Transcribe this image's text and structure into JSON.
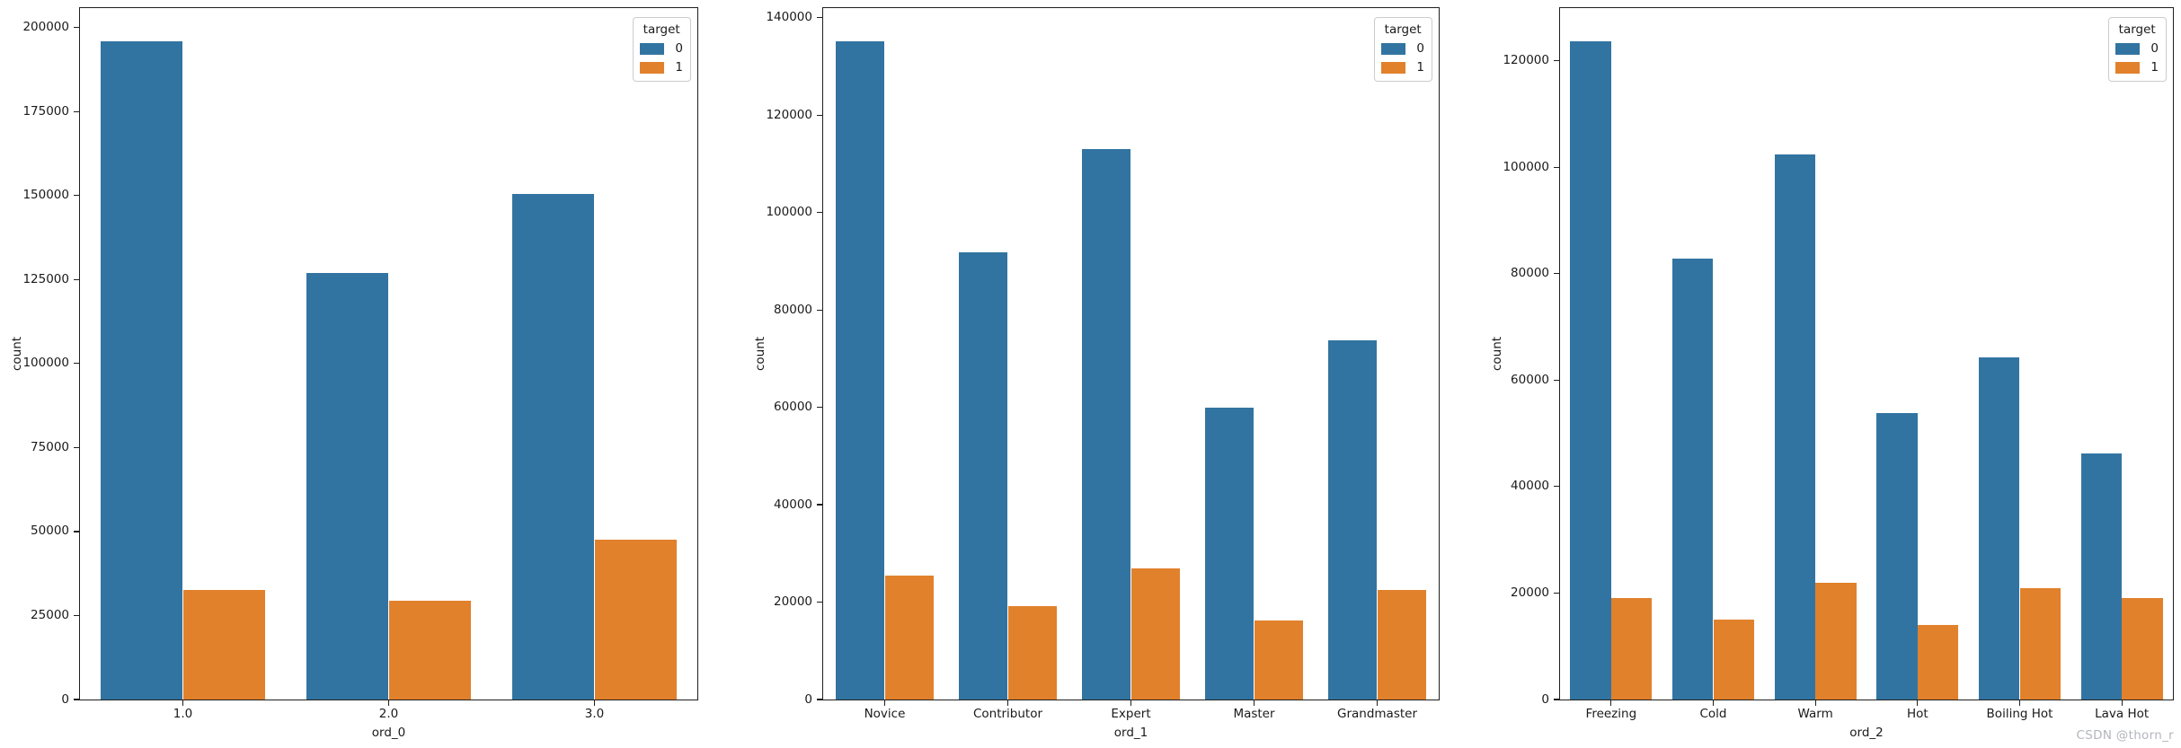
{
  "figure": {
    "watermark": "CSDN @thorn_r"
  },
  "colors": {
    "target0": "#3274a1",
    "target1": "#e1812c",
    "spine": "#1f1f1f",
    "watermark": "#b3b6bb"
  },
  "legend": {
    "title": "target",
    "items": [
      {
        "label": "0",
        "color": "#3274a1"
      },
      {
        "label": "1",
        "color": "#e1812c"
      }
    ]
  },
  "chart_data": [
    {
      "type": "bar",
      "title": "",
      "xlabel": "ord_0",
      "ylabel": "count",
      "categories": [
        "1.0",
        "2.0",
        "3.0"
      ],
      "series": [
        {
          "name": "0",
          "color": "#3274a1",
          "values": [
            196000,
            127000,
            150600
          ]
        },
        {
          "name": "1",
          "color": "#e1812c",
          "values": [
            32600,
            29500,
            47500
          ]
        }
      ],
      "ylim": [
        0,
        205800
      ],
      "ytick_step": 25000,
      "yticks": [
        0,
        25000,
        50000,
        75000,
        100000,
        125000,
        150000,
        175000,
        200000
      ],
      "grid": false,
      "legend_position": "upper right"
    },
    {
      "type": "bar",
      "title": "",
      "xlabel": "ord_1",
      "ylabel": "count",
      "categories": [
        "Novice",
        "Contributor",
        "Expert",
        "Master",
        "Grandmaster"
      ],
      "series": [
        {
          "name": "0",
          "color": "#3274a1",
          "values": [
            135200,
            91800,
            113100,
            60000,
            73800
          ]
        },
        {
          "name": "1",
          "color": "#e1812c",
          "values": [
            25400,
            19200,
            26900,
            16200,
            22500
          ]
        }
      ],
      "ylim": [
        0,
        142000
      ],
      "ytick_step": 20000,
      "yticks": [
        0,
        20000,
        40000,
        60000,
        80000,
        100000,
        120000,
        140000
      ],
      "grid": false,
      "legend_position": "upper right"
    },
    {
      "type": "bar",
      "title": "",
      "xlabel": "ord_2",
      "ylabel": "count",
      "categories": [
        "Freezing",
        "Cold",
        "Warm",
        "Hot",
        "Boiling Hot",
        "Lava Hot"
      ],
      "series": [
        {
          "name": "0",
          "color": "#3274a1",
          "values": [
            123700,
            82900,
            102400,
            53800,
            64300,
            46300
          ]
        },
        {
          "name": "1",
          "color": "#e1812c",
          "values": [
            19000,
            15100,
            21900,
            14000,
            20900,
            19000
          ]
        }
      ],
      "ylim": [
        0,
        129900
      ],
      "ytick_step": 20000,
      "yticks": [
        0,
        20000,
        40000,
        60000,
        80000,
        100000,
        120000
      ],
      "grid": false,
      "legend_position": "upper right"
    }
  ]
}
